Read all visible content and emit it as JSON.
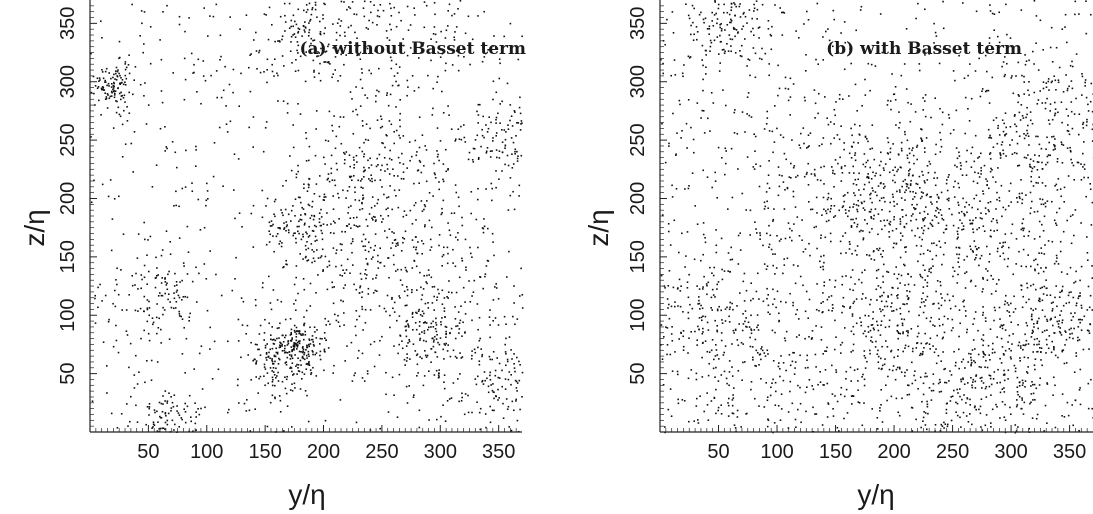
{
  "chart_data": [
    {
      "type": "scatter",
      "annotation": "(a) without Basset term",
      "xlabel": "y/η",
      "ylabel": "z/η",
      "xlim": [
        0,
        370
      ],
      "ylim": [
        0,
        370
      ],
      "xticks": [
        50,
        100,
        150,
        200,
        250,
        300,
        350
      ],
      "yticks": [
        50,
        100,
        150,
        200,
        250,
        300,
        350
      ],
      "grid": false,
      "series": [
        {
          "color": "#111111",
          "n_points": 2600,
          "seed": 17,
          "clusters": [
            {
              "x": 20,
              "y": 295,
              "r": 10,
              "w": 0.04
            },
            {
              "x": 180,
              "y": 340,
              "r": 20,
              "w": 0.05
            },
            {
              "x": 260,
              "y": 350,
              "r": 40,
              "w": 0.06
            },
            {
              "x": 360,
              "y": 250,
              "r": 20,
              "w": 0.05
            },
            {
              "x": 240,
              "y": 230,
              "r": 30,
              "w": 0.06
            },
            {
              "x": 180,
              "y": 180,
              "r": 20,
              "w": 0.05
            },
            {
              "x": 235,
              "y": 150,
              "r": 40,
              "w": 0.07
            },
            {
              "x": 290,
              "y": 140,
              "r": 35,
              "w": 0.06
            },
            {
              "x": 165,
              "y": 60,
              "r": 15,
              "w": 0.07
            },
            {
              "x": 180,
              "y": 75,
              "r": 10,
              "w": 0.04
            },
            {
              "x": 60,
              "y": 110,
              "r": 20,
              "w": 0.05
            },
            {
              "x": 290,
              "y": 80,
              "r": 20,
              "w": 0.05
            },
            {
              "x": 70,
              "y": 10,
              "r": 15,
              "w": 0.04
            },
            {
              "x": 350,
              "y": 40,
              "r": 20,
              "w": 0.04
            },
            {
              "x": 400,
              "y": 300,
              "r": 10,
              "w": 0.03
            }
          ]
        }
      ]
    },
    {
      "type": "scatter",
      "annotation": "(b) with Basset term",
      "xlabel": "y/η",
      "ylabel": "z/η",
      "xlim": [
        0,
        370
      ],
      "ylim": [
        0,
        370
      ],
      "xticks": [
        50,
        100,
        150,
        200,
        250,
        300,
        350
      ],
      "yticks": [
        50,
        100,
        150,
        200,
        250,
        300,
        350
      ],
      "grid": false,
      "series": [
        {
          "color": "#111111",
          "n_points": 3000,
          "seed": 91,
          "clusters": [
            {
              "x": 60,
              "y": 350,
              "r": 20,
              "w": 0.05
            },
            {
              "x": 140,
              "y": 200,
              "r": 40,
              "w": 0.06
            },
            {
              "x": 200,
              "y": 210,
              "r": 30,
              "w": 0.06
            },
            {
              "x": 240,
              "y": 160,
              "r": 40,
              "w": 0.06
            },
            {
              "x": 300,
              "y": 200,
              "r": 40,
              "w": 0.06
            },
            {
              "x": 340,
              "y": 260,
              "r": 30,
              "w": 0.05
            },
            {
              "x": 40,
              "y": 100,
              "r": 30,
              "w": 0.06
            },
            {
              "x": 90,
              "y": 50,
              "r": 40,
              "w": 0.06
            },
            {
              "x": 200,
              "y": 90,
              "r": 30,
              "w": 0.06
            },
            {
              "x": 300,
              "y": 60,
              "r": 30,
              "w": 0.05
            },
            {
              "x": 340,
              "y": 100,
              "r": 20,
              "w": 0.05
            },
            {
              "x": 260,
              "y": 30,
              "r": 30,
              "w": 0.05
            }
          ]
        }
      ]
    }
  ]
}
